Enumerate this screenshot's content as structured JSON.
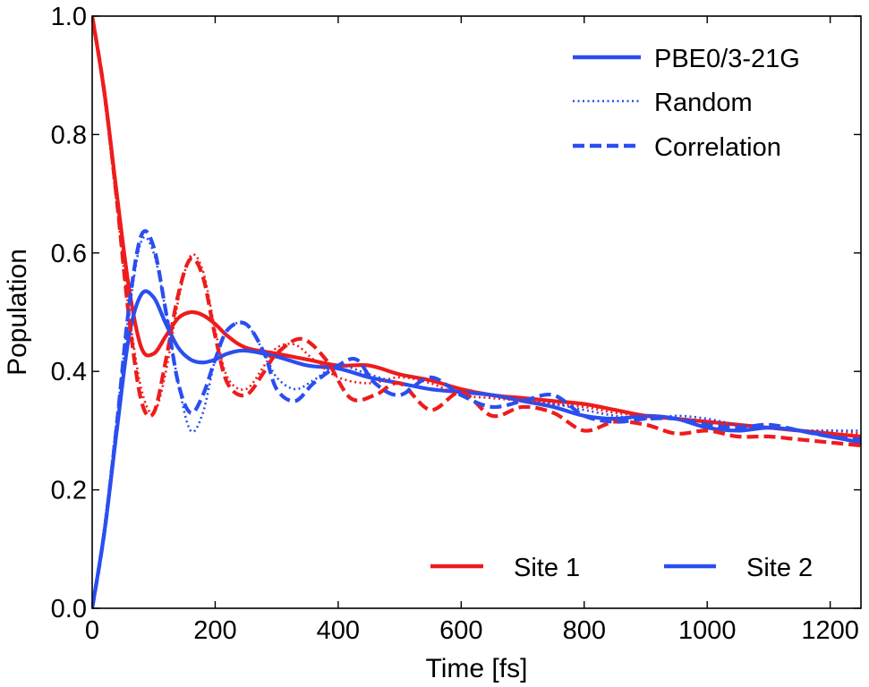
{
  "chart_data": {
    "type": "line",
    "title": "",
    "xlabel": "Time [fs]",
    "ylabel": "Population",
    "xlim": [
      0,
      1250
    ],
    "ylim": [
      0.0,
      1.0
    ],
    "x_ticks": [
      0,
      200,
      400,
      600,
      800,
      1000,
      1200
    ],
    "y_ticks": [
      0.0,
      0.2,
      0.4,
      0.6,
      0.8,
      1.0
    ],
    "x_tick_labels": [
      "0",
      "200",
      "400",
      "600",
      "800",
      "1000",
      "1200"
    ],
    "y_tick_labels": [
      "0.0",
      "0.2",
      "0.4",
      "0.6",
      "0.8",
      "1.0"
    ],
    "grid": false,
    "colors": {
      "site1": "#ee1c1c",
      "site2": "#2a4ef0"
    },
    "legend_methods": {
      "placement": "top-right",
      "entries": [
        {
          "label": "PBE0/3-21G",
          "style": "solid"
        },
        {
          "label": "Random",
          "style": "dotted"
        },
        {
          "label": "Correlation",
          "style": "dashed"
        }
      ]
    },
    "legend_sites": {
      "placement": "bottom-right",
      "entries": [
        {
          "label": "Site 1",
          "color": "#ee1c1c"
        },
        {
          "label": "Site 2",
          "color": "#2a4ef0"
        }
      ]
    },
    "series": [
      {
        "name": "Site 1 PBE0/3-21G",
        "site": "Site 1",
        "method": "PBE0/3-21G",
        "style": "solid",
        "color": "#ee1c1c",
        "x": [
          0,
          20,
          40,
          60,
          80,
          100,
          120,
          140,
          160,
          180,
          200,
          220,
          250,
          300,
          350,
          400,
          450,
          500,
          550,
          600,
          650,
          700,
          750,
          800,
          850,
          900,
          950,
          1000,
          1050,
          1100,
          1150,
          1200,
          1250
        ],
        "y": [
          1.0,
          0.87,
          0.7,
          0.54,
          0.44,
          0.43,
          0.46,
          0.49,
          0.5,
          0.495,
          0.48,
          0.46,
          0.44,
          0.43,
          0.42,
          0.41,
          0.41,
          0.395,
          0.385,
          0.37,
          0.36,
          0.355,
          0.35,
          0.345,
          0.335,
          0.325,
          0.32,
          0.315,
          0.31,
          0.305,
          0.3,
          0.295,
          0.29
        ]
      },
      {
        "name": "Site 2 PBE0/3-21G",
        "site": "Site 2",
        "method": "PBE0/3-21G",
        "style": "solid",
        "color": "#2a4ef0",
        "x": [
          0,
          20,
          40,
          60,
          80,
          100,
          120,
          140,
          160,
          180,
          200,
          220,
          250,
          300,
          350,
          400,
          450,
          500,
          550,
          600,
          650,
          700,
          750,
          800,
          850,
          900,
          950,
          1000,
          1050,
          1100,
          1150,
          1200,
          1250
        ],
        "y": [
          0.0,
          0.13,
          0.3,
          0.46,
          0.53,
          0.525,
          0.48,
          0.44,
          0.42,
          0.415,
          0.42,
          0.43,
          0.435,
          0.425,
          0.41,
          0.405,
          0.39,
          0.38,
          0.37,
          0.365,
          0.36,
          0.35,
          0.34,
          0.325,
          0.32,
          0.325,
          0.32,
          0.305,
          0.3,
          0.305,
          0.3,
          0.29,
          0.28
        ]
      },
      {
        "name": "Site 1 Random",
        "site": "Site 1",
        "method": "Random",
        "style": "dotted",
        "color": "#ee1c1c",
        "x": [
          0,
          20,
          40,
          60,
          80,
          100,
          120,
          140,
          160,
          180,
          200,
          220,
          250,
          280,
          300,
          330,
          360,
          400,
          450,
          500,
          550,
          600,
          650,
          700,
          750,
          800,
          850,
          900,
          950,
          1000,
          1050,
          1100,
          1150,
          1200,
          1250
        ],
        "y": [
          1.0,
          0.86,
          0.68,
          0.5,
          0.37,
          0.33,
          0.4,
          0.52,
          0.595,
          0.57,
          0.47,
          0.39,
          0.37,
          0.41,
          0.44,
          0.445,
          0.42,
          0.39,
          0.38,
          0.39,
          0.38,
          0.36,
          0.355,
          0.35,
          0.345,
          0.34,
          0.33,
          0.325,
          0.32,
          0.315,
          0.31,
          0.305,
          0.3,
          0.3,
          0.295
        ]
      },
      {
        "name": "Site 2 Random",
        "site": "Site 2",
        "method": "Random",
        "style": "dotted",
        "color": "#2a4ef0",
        "x": [
          0,
          20,
          40,
          60,
          80,
          100,
          120,
          140,
          160,
          180,
          200,
          220,
          250,
          280,
          300,
          330,
          360,
          400,
          450,
          500,
          550,
          600,
          650,
          700,
          750,
          800,
          850,
          900,
          950,
          1000,
          1050,
          1100,
          1150,
          1200,
          1250
        ],
        "y": [
          0.0,
          0.14,
          0.32,
          0.5,
          0.62,
          0.6,
          0.5,
          0.38,
          0.3,
          0.33,
          0.42,
          0.47,
          0.48,
          0.43,
          0.39,
          0.37,
          0.385,
          0.41,
          0.395,
          0.38,
          0.37,
          0.365,
          0.36,
          0.35,
          0.345,
          0.335,
          0.325,
          0.32,
          0.325,
          0.32,
          0.31,
          0.305,
          0.3,
          0.3,
          0.3
        ]
      },
      {
        "name": "Site 1 Correlation",
        "site": "Site 1",
        "method": "Correlation",
        "style": "dashed",
        "color": "#ee1c1c",
        "x": [
          0,
          20,
          40,
          60,
          80,
          100,
          120,
          140,
          160,
          180,
          200,
          220,
          250,
          280,
          300,
          340,
          380,
          420,
          460,
          500,
          550,
          600,
          650,
          700,
          750,
          800,
          850,
          900,
          950,
          1000,
          1050,
          1100,
          1150,
          1200,
          1250
        ],
        "y": [
          1.0,
          0.87,
          0.69,
          0.49,
          0.35,
          0.33,
          0.42,
          0.53,
          0.59,
          0.56,
          0.46,
          0.38,
          0.36,
          0.4,
          0.43,
          0.455,
          0.42,
          0.355,
          0.36,
          0.38,
          0.335,
          0.365,
          0.325,
          0.34,
          0.33,
          0.3,
          0.315,
          0.31,
          0.295,
          0.3,
          0.29,
          0.29,
          0.285,
          0.28,
          0.275
        ]
      },
      {
        "name": "Site 2 Correlation",
        "site": "Site 2",
        "method": "Correlation",
        "style": "dashed",
        "color": "#2a4ef0",
        "x": [
          0,
          20,
          40,
          60,
          80,
          100,
          120,
          140,
          160,
          180,
          200,
          220,
          250,
          280,
          300,
          330,
          360,
          400,
          430,
          460,
          500,
          550,
          600,
          650,
          700,
          750,
          800,
          850,
          900,
          950,
          1000,
          1050,
          1100,
          1150,
          1200,
          1250
        ],
        "y": [
          0.0,
          0.13,
          0.31,
          0.51,
          0.63,
          0.61,
          0.5,
          0.38,
          0.33,
          0.36,
          0.42,
          0.47,
          0.48,
          0.43,
          0.37,
          0.35,
          0.38,
          0.41,
          0.42,
          0.38,
          0.36,
          0.39,
          0.36,
          0.34,
          0.35,
          0.36,
          0.325,
          0.315,
          0.32,
          0.32,
          0.31,
          0.305,
          0.31,
          0.3,
          0.29,
          0.285
        ]
      }
    ]
  }
}
